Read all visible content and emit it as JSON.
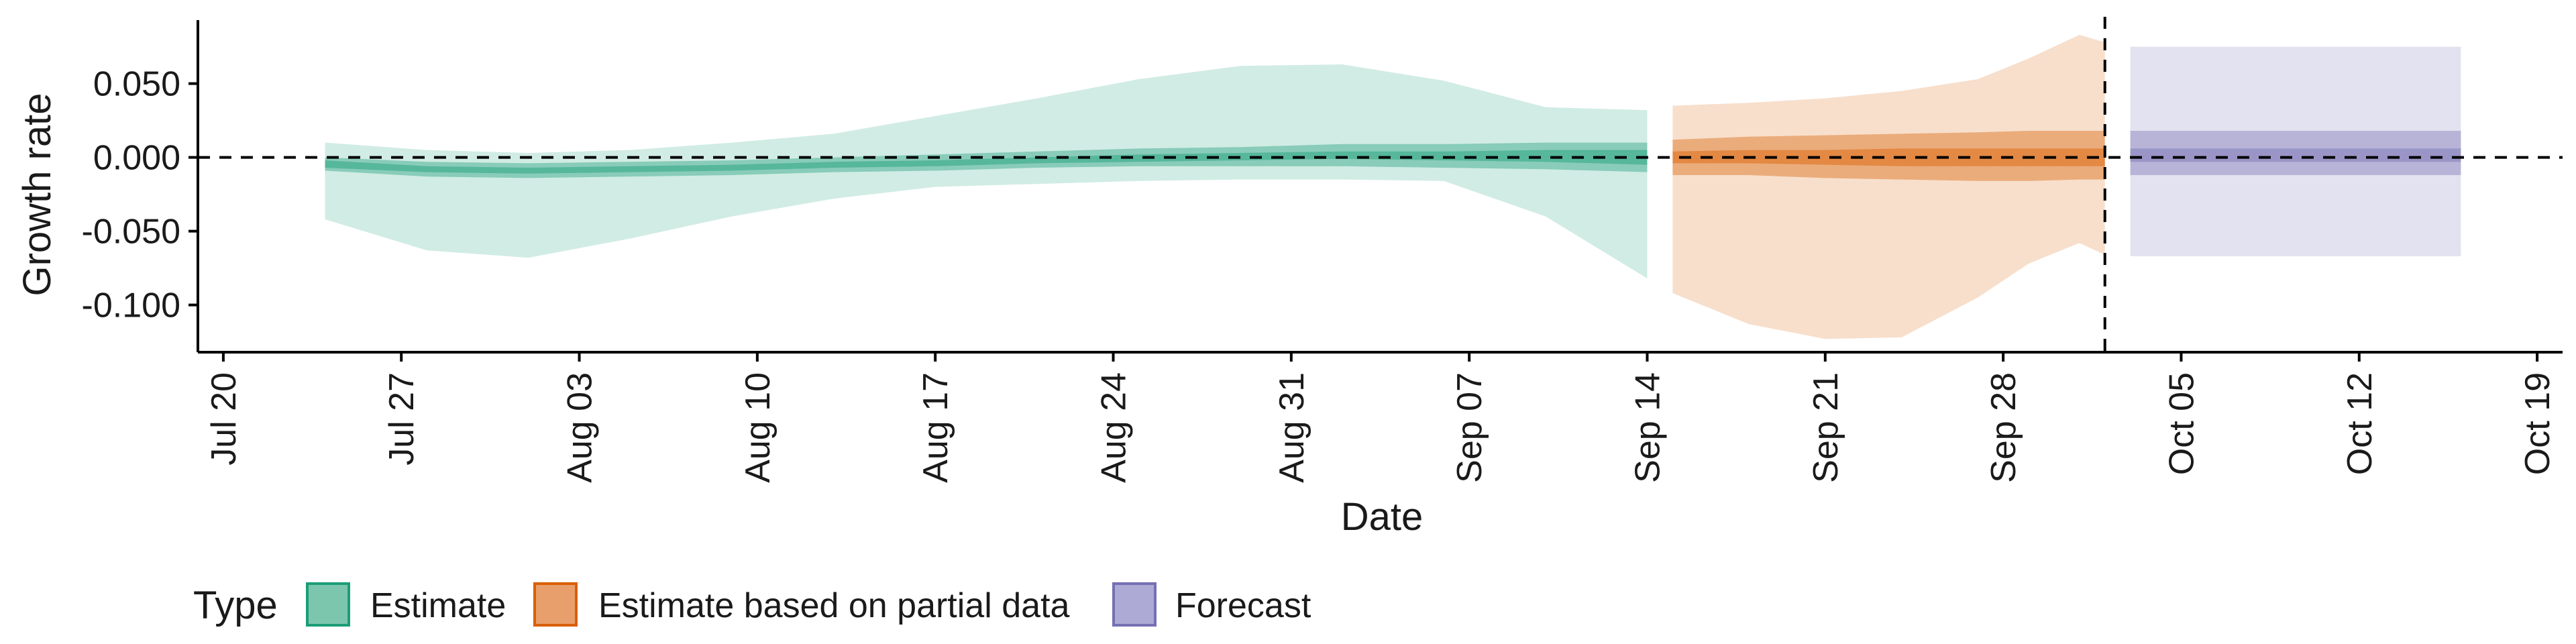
{
  "chart_data": {
    "type": "area",
    "title": "",
    "xlabel": "Date",
    "ylabel": "Growth rate",
    "xlim": [
      "2020-07-19",
      "2020-10-20"
    ],
    "ylim": [
      -0.132,
      0.093
    ],
    "x_ticks": [
      "2020-07-20",
      "2020-07-27",
      "2020-08-03",
      "2020-08-10",
      "2020-08-17",
      "2020-08-24",
      "2020-08-31",
      "2020-09-07",
      "2020-09-14",
      "2020-09-21",
      "2020-09-28",
      "2020-10-05",
      "2020-10-12",
      "2020-10-19"
    ],
    "x_tick_labels": [
      "Jul 20",
      "Jul 27",
      "Aug 03",
      "Aug 10",
      "Aug 17",
      "Aug 24",
      "Aug 31",
      "Sep 07",
      "Sep 14",
      "Sep 21",
      "Sep 28",
      "Oct 05",
      "Oct 12",
      "Oct 19"
    ],
    "y_ticks": [
      -0.1,
      -0.05,
      0.0,
      0.05
    ],
    "y_tick_labels": [
      "-0.100",
      "-0.050",
      "0.000",
      "0.050"
    ],
    "reference_lines": {
      "horizontal_y": 0.0,
      "vertical_x": "2020-10-02"
    },
    "grid": false,
    "legend": {
      "title": "Type",
      "position": "bottom-left",
      "entries": [
        "Estimate",
        "Estimate based on partial data",
        "Forecast"
      ]
    },
    "colors": {
      "Estimate": "#1b9e77",
      "Estimate based on partial data": "#d95f02",
      "Forecast": "#7570b3"
    },
    "series": [
      {
        "name": "Estimate",
        "x": [
          "2020-07-24",
          "2020-07-28",
          "2020-08-01",
          "2020-08-05",
          "2020-08-09",
          "2020-08-13",
          "2020-08-17",
          "2020-08-21",
          "2020-08-25",
          "2020-08-29",
          "2020-09-02",
          "2020-09-06",
          "2020-09-10",
          "2020-09-14"
        ],
        "upper90": [
          0.01,
          0.005,
          0.003,
          0.005,
          0.01,
          0.016,
          0.028,
          0.04,
          0.053,
          0.062,
          0.063,
          0.052,
          0.034,
          0.032
        ],
        "lower90": [
          -0.042,
          -0.063,
          -0.068,
          -0.055,
          -0.04,
          -0.028,
          -0.02,
          -0.018,
          -0.016,
          -0.015,
          -0.015,
          -0.016,
          -0.04,
          -0.082
        ],
        "upper50": [
          0.0,
          -0.003,
          -0.004,
          -0.003,
          -0.002,
          0.0,
          0.002,
          0.004,
          0.006,
          0.007,
          0.009,
          0.009,
          0.01,
          0.01
        ],
        "lower50": [
          -0.009,
          -0.013,
          -0.014,
          -0.013,
          -0.012,
          -0.01,
          -0.009,
          -0.007,
          -0.006,
          -0.006,
          -0.006,
          -0.007,
          -0.008,
          -0.01
        ],
        "upper20": [
          -0.002,
          -0.006,
          -0.007,
          -0.006,
          -0.005,
          -0.003,
          -0.002,
          0.0,
          0.002,
          0.003,
          0.004,
          0.004,
          0.005,
          0.005
        ],
        "lower20": [
          -0.007,
          -0.01,
          -0.011,
          -0.01,
          -0.009,
          -0.007,
          -0.006,
          -0.004,
          -0.003,
          -0.002,
          -0.001,
          -0.002,
          -0.003,
          -0.005
        ]
      },
      {
        "name": "Estimate based on partial data",
        "x": [
          "2020-09-15",
          "2020-09-18",
          "2020-09-21",
          "2020-09-24",
          "2020-09-27",
          "2020-09-29",
          "2020-10-01",
          "2020-10-02"
        ],
        "upper90": [
          0.035,
          0.037,
          0.04,
          0.045,
          0.053,
          0.067,
          0.083,
          0.078
        ],
        "lower90": [
          -0.092,
          -0.113,
          -0.123,
          -0.122,
          -0.095,
          -0.072,
          -0.058,
          -0.066
        ],
        "upper50": [
          0.012,
          0.014,
          0.015,
          0.016,
          0.017,
          0.018,
          0.018,
          0.018
        ],
        "lower50": [
          -0.012,
          -0.012,
          -0.014,
          -0.015,
          -0.016,
          -0.016,
          -0.015,
          -0.015
        ],
        "upper20": [
          0.004,
          0.005,
          0.005,
          0.006,
          0.006,
          0.006,
          0.006,
          0.006
        ],
        "lower20": [
          -0.004,
          -0.004,
          -0.005,
          -0.006,
          -0.006,
          -0.006,
          -0.006,
          -0.006
        ]
      },
      {
        "name": "Forecast",
        "x": [
          "2020-10-03",
          "2020-10-16"
        ],
        "upper90": [
          0.075,
          0.075
        ],
        "lower90": [
          -0.067,
          -0.067
        ],
        "upper50": [
          0.018,
          0.018
        ],
        "lower50": [
          -0.012,
          -0.012
        ],
        "upper20": [
          0.006,
          0.006
        ],
        "lower20": [
          -0.003,
          -0.003
        ]
      }
    ]
  }
}
